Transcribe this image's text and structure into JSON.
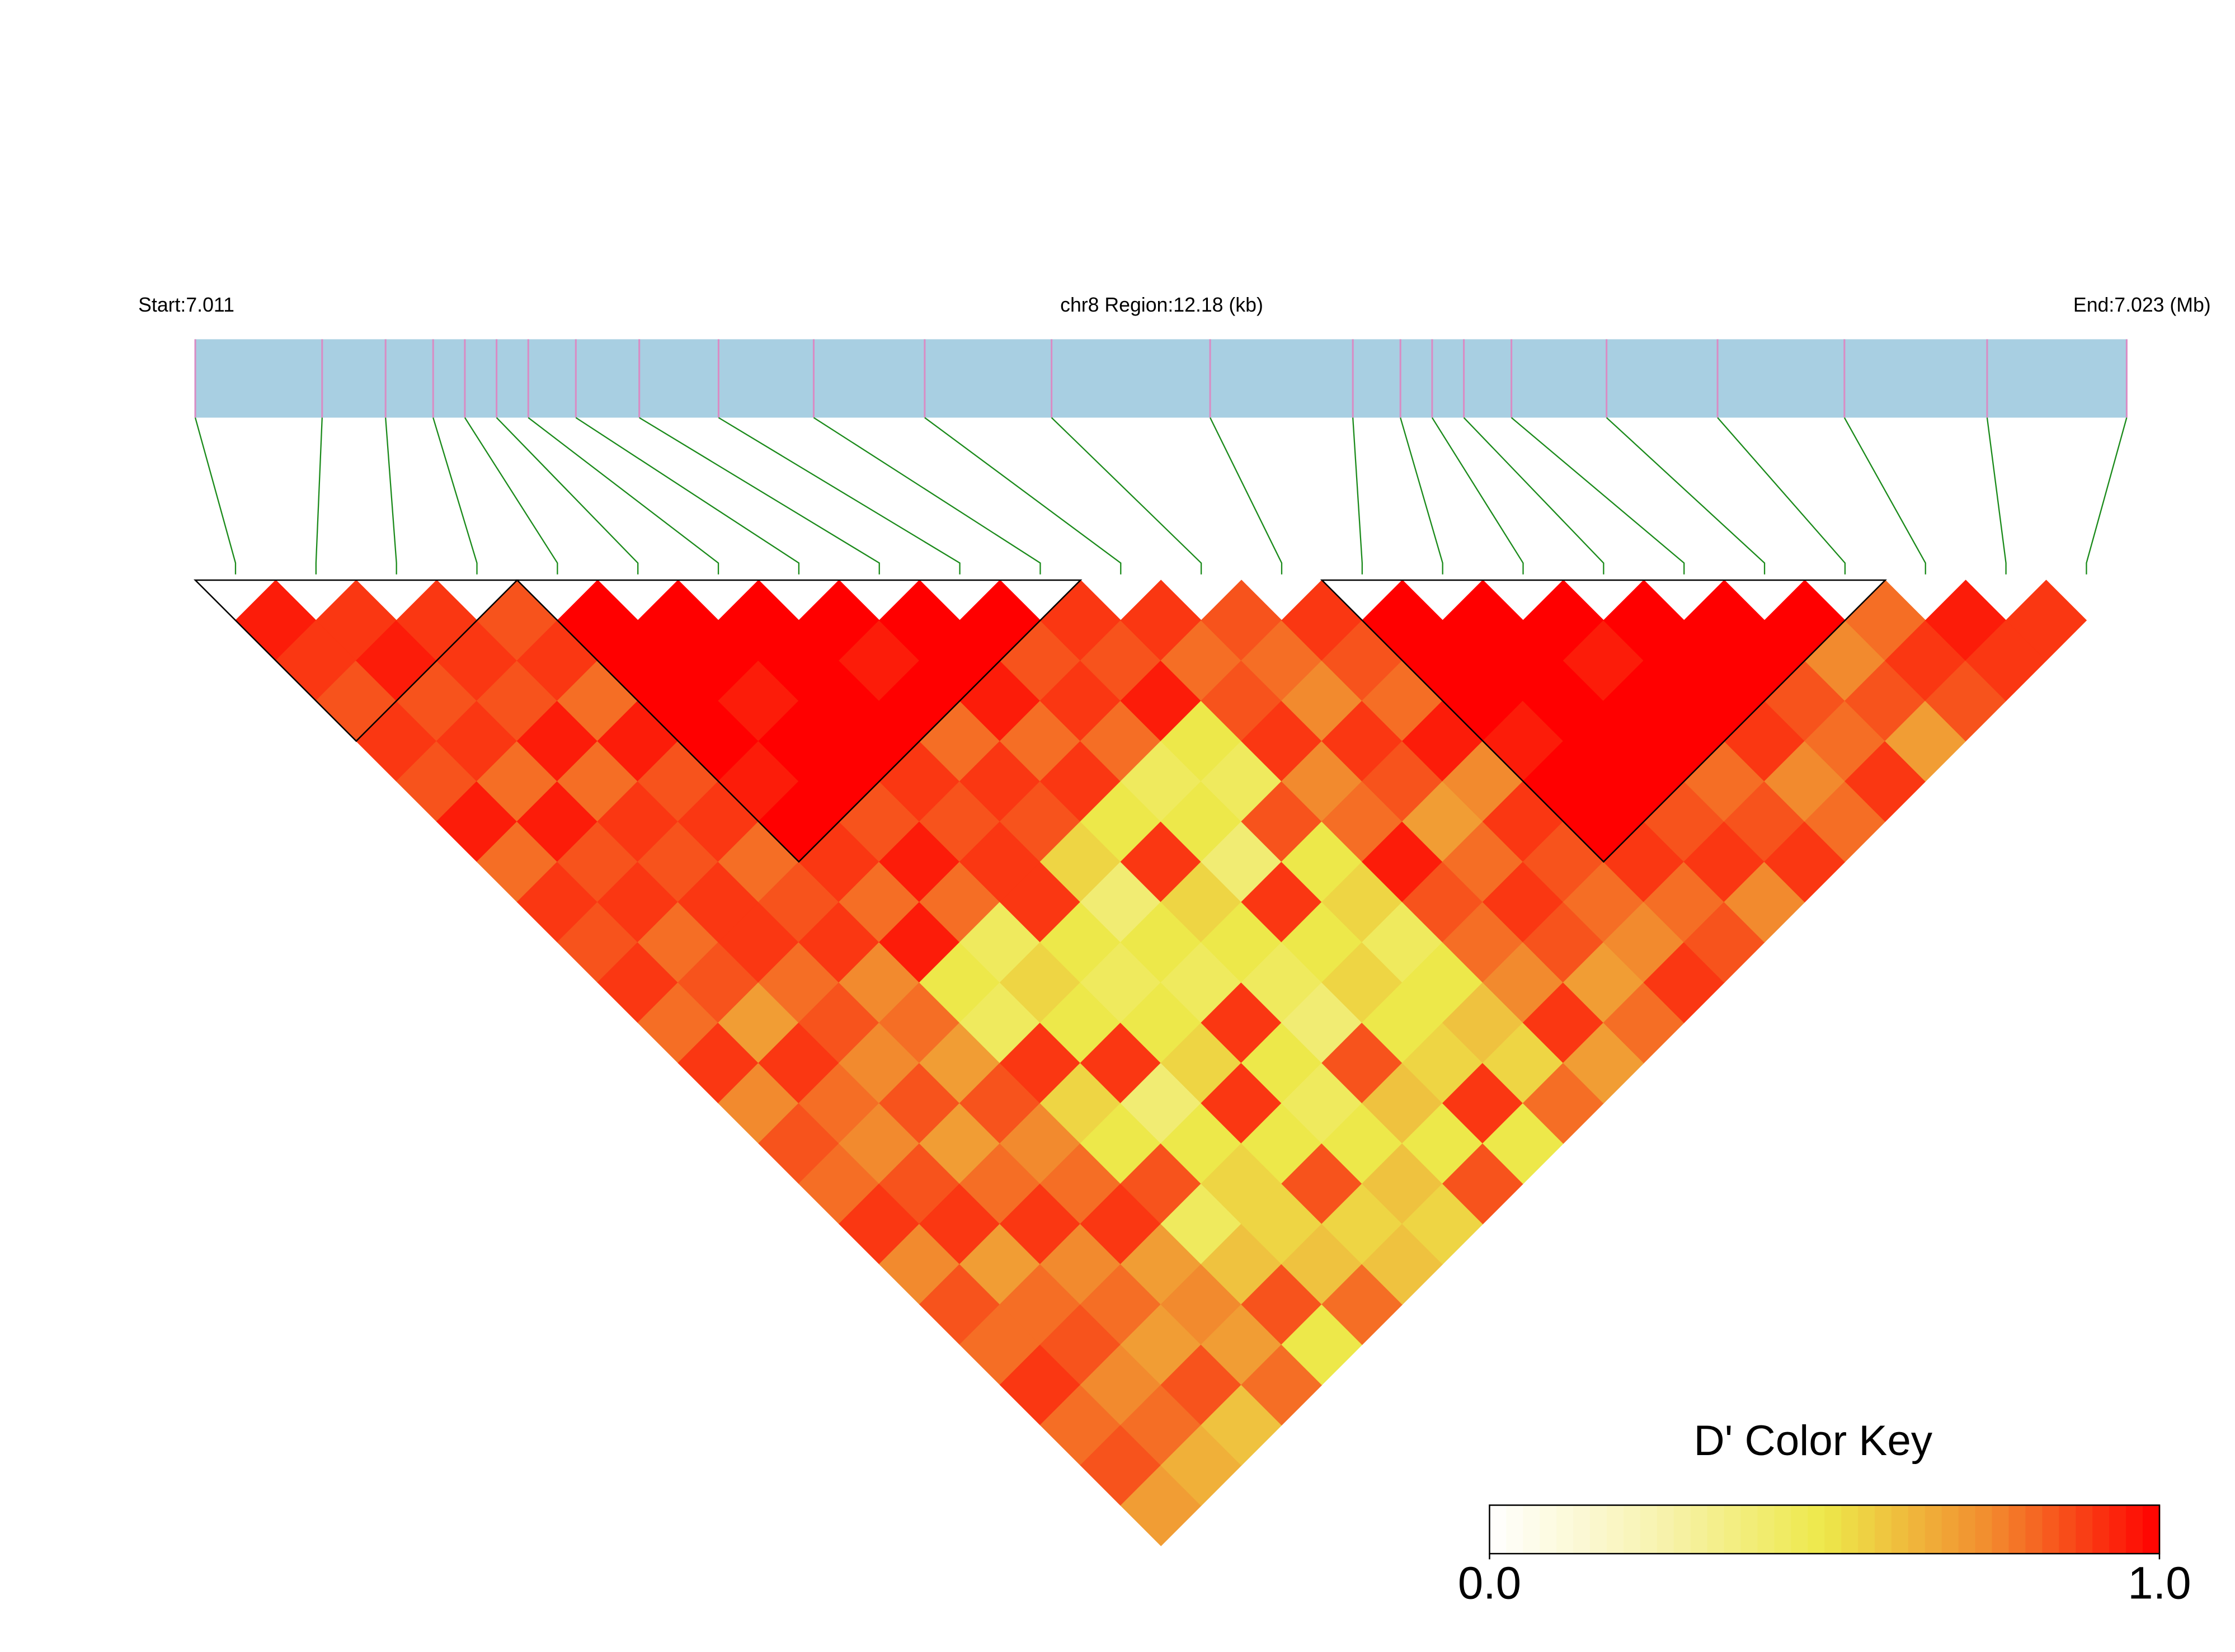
{
  "chart_data": {
    "type": "ld-heatmap",
    "start_label": "Start:7.011",
    "title": "chr8 Region:12.18 (kb)",
    "end_label": "End:7.023 (Mb)",
    "key_title": "D' Color Key",
    "region_kb": [
      0,
      12.18
    ],
    "snp_positions": [
      0,
      0.8,
      1.2,
      1.5,
      1.7,
      1.9,
      2.1,
      2.4,
      2.8,
      3.3,
      3.9,
      4.6,
      5.4,
      6.4,
      7.3,
      7.6,
      7.8,
      8.0,
      8.3,
      8.9,
      9.6,
      10.4,
      11.3,
      12.18
    ],
    "bar_color": "#a8cfe2",
    "snp_tick_color": "#d98cc4",
    "connector_color": "#1a8a1a",
    "blocks": [
      [
        0,
        3
      ],
      [
        4,
        10
      ],
      [
        14,
        20
      ]
    ],
    "colormap": [
      "#ffffff",
      "#f8f3b0",
      "#ede84a",
      "#f28a2e",
      "#ff0000"
    ],
    "key_lim": [
      0,
      1
    ],
    "key_ticks": [
      {
        "value": 0,
        "label": "0.0"
      },
      {
        "value": 1,
        "label": "1.0"
      }
    ],
    "dprime": [
      [
        0.95,
        0.9,
        0.85,
        0.9,
        0.85,
        0.95,
        0.8,
        0.9,
        0.85,
        0.9,
        0.8,
        0.9,
        0.75,
        0.85,
        0.8,
        0.9,
        0.75,
        0.85,
        0.8,
        0.9,
        0.8,
        0.85,
        0.7
      ],
      [
        0.9,
        0.95,
        0.85,
        0.9,
        0.8,
        0.95,
        0.85,
        0.9,
        0.8,
        0.85,
        0.7,
        0.9,
        0.8,
        0.75,
        0.85,
        0.9,
        0.7,
        0.8,
        0.85,
        0.75,
        0.8,
        0.65
      ],
      [
        0.9,
        0.9,
        0.85,
        0.95,
        0.8,
        0.9,
        0.85,
        0.9,
        0.9,
        0.8,
        0.85,
        0.75,
        0.85,
        0.7,
        0.8,
        0.9,
        0.75,
        0.8,
        0.7,
        0.85,
        0.6
      ],
      [
        0.85,
        0.9,
        0.8,
        0.95,
        0.85,
        0.9,
        0.8,
        0.85,
        0.9,
        0.75,
        0.8,
        0.7,
        0.85,
        0.75,
        0.8,
        0.9,
        0.7,
        0.75,
        0.7,
        0.8
      ],
      [
        1,
        1,
        1,
        1,
        0.95,
        1,
        0.9,
        0.8,
        0.95,
        0.5,
        0.45,
        0.9,
        0.55,
        0.5,
        0.85,
        0.45,
        0.6,
        0.85,
        0.5
      ],
      [
        1,
        1,
        0.95,
        1,
        1,
        0.85,
        0.95,
        0.8,
        0.45,
        0.55,
        0.5,
        0.9,
        0.4,
        0.5,
        0.55,
        0.55,
        0.6,
        0.8
      ],
      [
        1,
        1,
        1,
        1,
        0.9,
        0.85,
        0.9,
        0.9,
        0.5,
        0.45,
        0.5,
        0.55,
        0.9,
        0.5,
        0.85,
        0.55,
        0.6
      ],
      [
        1,
        0.95,
        1,
        0.8,
        0.9,
        0.85,
        0.55,
        0.4,
        0.5,
        0.45,
        0.9,
        0.5,
        0.45,
        0.5,
        0.6,
        0.55
      ],
      [
        1,
        1,
        0.95,
        0.8,
        0.9,
        0.5,
        0.9,
        0.55,
        0.5,
        0.45,
        0.4,
        0.85,
        0.6,
        0.5,
        0.85
      ],
      [
        1,
        0.85,
        0.9,
        0.8,
        0.45,
        0.5,
        0.4,
        0.9,
        0.5,
        0.55,
        0.5,
        0.55,
        0.9,
        0.5
      ],
      [
        0.9,
        0.85,
        0.95,
        0.5,
        0.45,
        0.85,
        0.5,
        0.55,
        0.45,
        0.5,
        0.6,
        0.55,
        0.8
      ],
      [
        0.9,
        0.8,
        0.85,
        0.9,
        0.75,
        0.8,
        0.95,
        0.85,
        0.8,
        0.75,
        0.9,
        0.7
      ],
      [
        0.85,
        0.8,
        0.75,
        0.9,
        0.85,
        0.7,
        0.8,
        0.9,
        0.85,
        0.7,
        0.8
      ],
      [
        0.9,
        0.85,
        0.8,
        0.95,
        0.75,
        0.9,
        0.85,
        0.8,
        0.75,
        0.9
      ],
      [
        1,
        1,
        1,
        0.95,
        1,
        1,
        0.9,
        0.8,
        0.85
      ],
      [
        1,
        1,
        1,
        1,
        1,
        0.85,
        0.9,
        0.75
      ],
      [
        1,
        0.95,
        1,
        1,
        0.8,
        0.85,
        0.9
      ],
      [
        1,
        1,
        1,
        0.9,
        0.75,
        0.8
      ],
      [
        1,
        1,
        0.85,
        0.8,
        0.9
      ],
      [
        1,
        0.75,
        0.85,
        0.7
      ],
      [
        0.8,
        0.9,
        0.85
      ],
      [
        0.95,
        0.9
      ],
      [
        0.9
      ]
    ]
  }
}
